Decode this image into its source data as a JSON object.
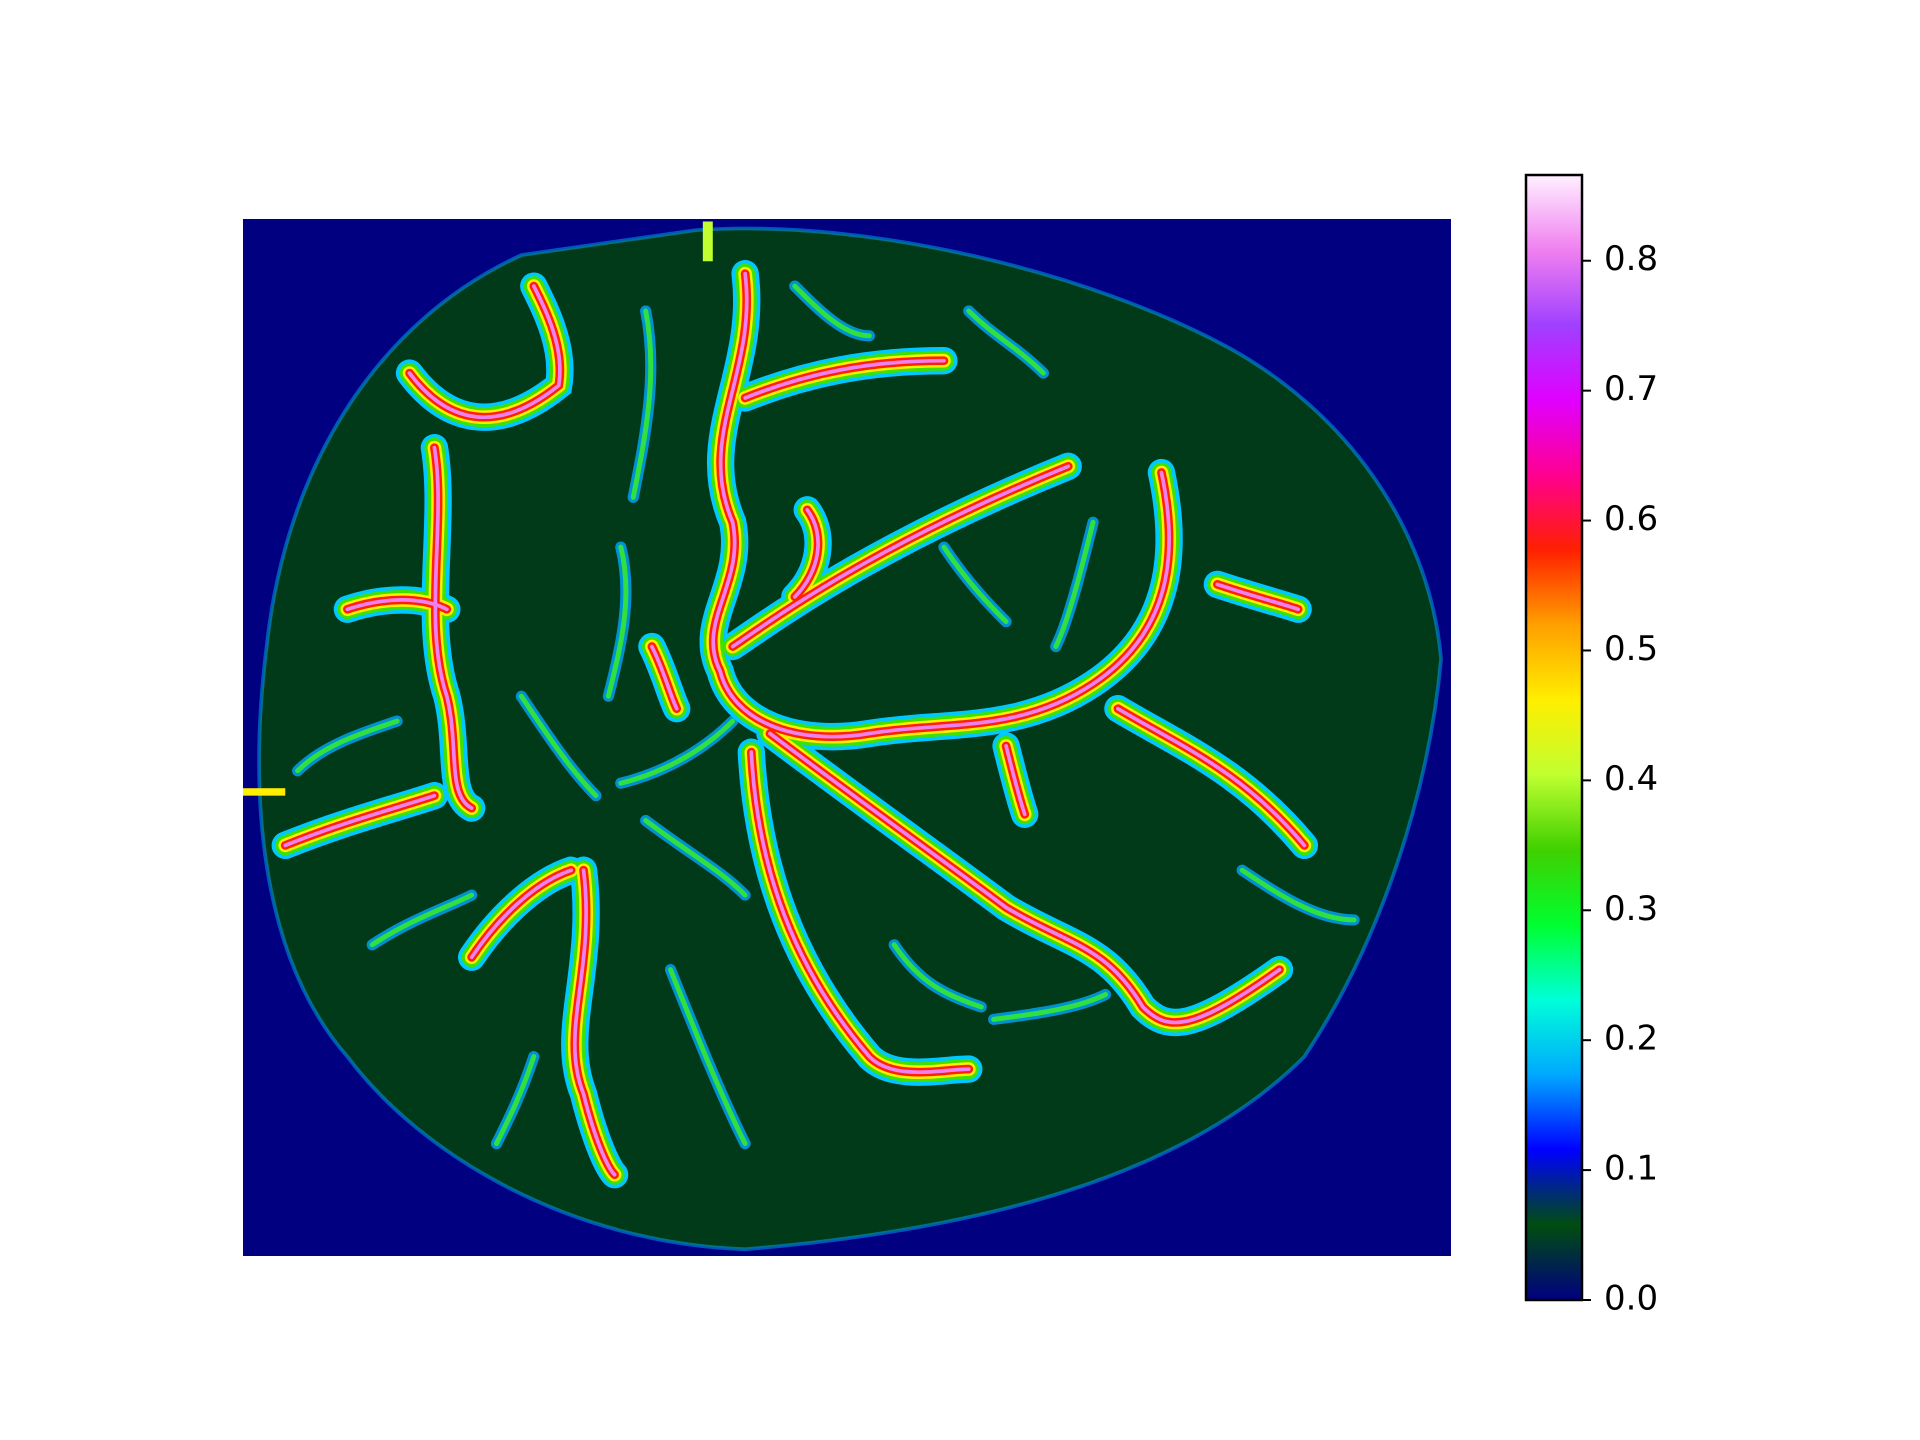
{
  "chart_data": {
    "type": "heatmap",
    "clim": [
      0,
      0.866
    ],
    "cticks": [
      {
        "value": 0,
        "label": "0.0"
      },
      0.1,
      0.2,
      0.3,
      0.4,
      0.5,
      0.6,
      0.7,
      0.8
    ],
    "colors": [
      "#000080",
      "#004d10",
      "#0000ff",
      "#00a8ff",
      "#00ffd8",
      "#00ff30",
      "#40d000",
      "#c0ff30",
      "#ffee00",
      "#ffa000",
      "#ff2000",
      "#ff0090",
      "#e000ff",
      "#a040ff",
      "#f080f0",
      "#fff0ff"
    ]
  }
}
